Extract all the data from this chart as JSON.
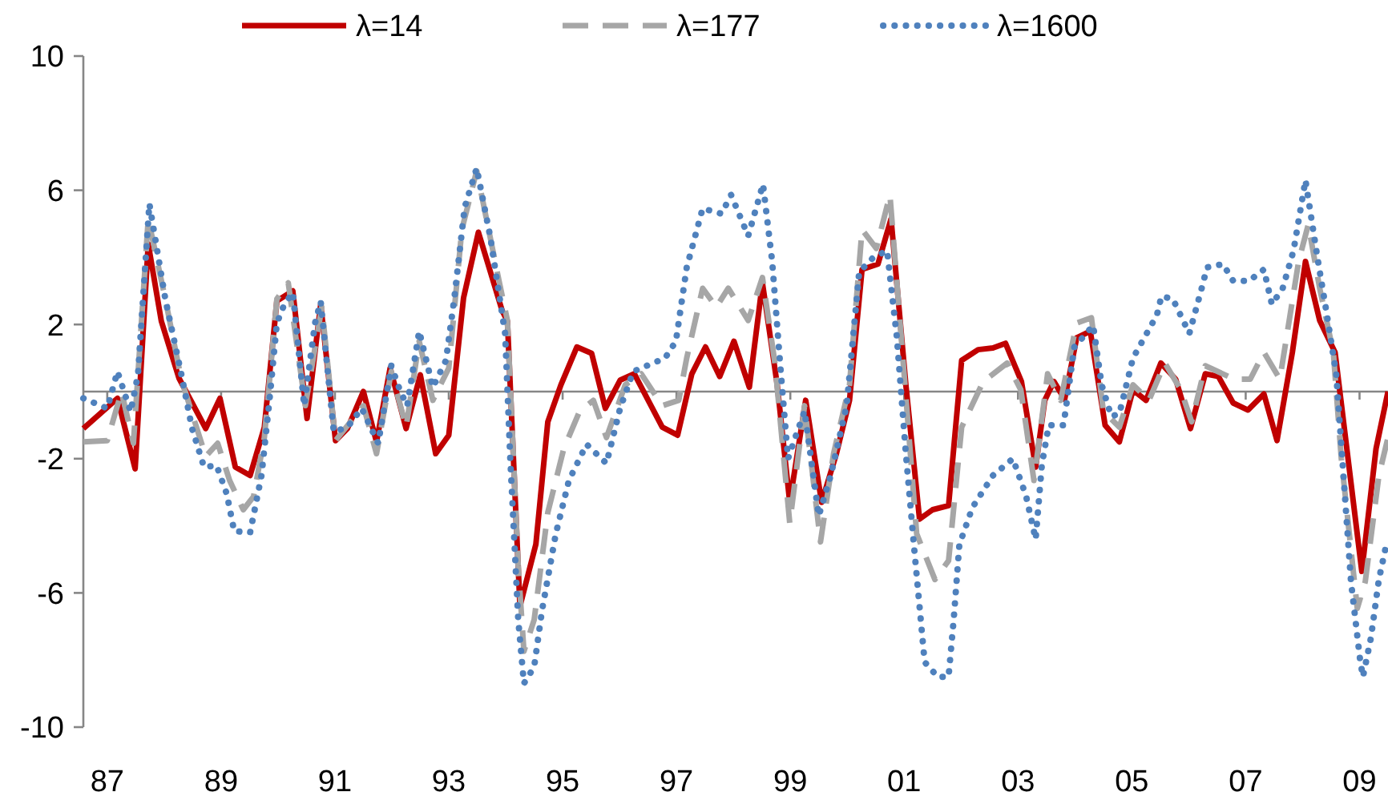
{
  "chart_data": {
    "type": "line",
    "xlim": [
      1986.58,
      2009.5
    ],
    "ylim": [
      -10,
      10
    ],
    "xticks": [
      {
        "value": 1987,
        "label": "87"
      },
      {
        "value": 1989,
        "label": "89"
      },
      {
        "value": 1991,
        "label": "91"
      },
      {
        "value": 1993,
        "label": "93"
      },
      {
        "value": 1995,
        "label": "95"
      },
      {
        "value": 1997,
        "label": "97"
      },
      {
        "value": 1999,
        "label": "99"
      },
      {
        "value": 2001,
        "label": "01"
      },
      {
        "value": 2003,
        "label": "03"
      },
      {
        "value": 2005,
        "label": "05"
      },
      {
        "value": 2007,
        "label": "07"
      },
      {
        "value": 2009,
        "label": "09"
      }
    ],
    "yticks": [
      -10,
      -6,
      -2,
      2,
      6,
      10
    ],
    "grid": false,
    "legend": "top",
    "series": [
      {
        "name": "λ=14",
        "color": "#c00000",
        "line_style": "solid",
        "x": [
          1986.58,
          1987.18,
          1987.49,
          1987.72,
          1987.95,
          1988.26,
          1988.73,
          1988.98,
          1989.25,
          1989.51,
          1989.76,
          1989.98,
          1990.26,
          1990.51,
          1990.75,
          1991.01,
          1991.22,
          1991.5,
          1991.73,
          1991.97,
          1992.25,
          1992.5,
          1992.77,
          1993.0,
          1993.26,
          1993.52,
          1993.94,
          1994.03,
          1994.25,
          1994.53,
          1994.74,
          1994.97,
          1995.25,
          1995.51,
          1995.75,
          1996.01,
          1996.26,
          1996.75,
          1997.02,
          1997.27,
          1997.51,
          1997.76,
          1998.01,
          1998.28,
          1998.51,
          1998.77,
          1998.99,
          1999.27,
          1999.55,
          1999.81,
          2000.04,
          2000.26,
          2000.54,
          2000.77,
          2001.03,
          2001.27,
          2001.5,
          2001.78,
          2002.01,
          2002.3,
          2002.56,
          2002.78,
          2003.06,
          2003.31,
          2003.47,
          2003.63,
          2003.82,
          2004.03,
          2004.27,
          2004.53,
          2004.78,
          2005.02,
          2005.25,
          2005.51,
          2005.77,
          2006.03,
          2006.29,
          2006.52,
          2006.78,
          2007.04,
          2007.32,
          2007.55,
          2007.82,
          2008.05,
          2008.3,
          2008.57,
          2009.04,
          2009.29,
          2009.5
        ],
        "values": [
          -1.1,
          -0.2,
          -2.3,
          4.4,
          2.1,
          0.4,
          -1.1,
          -0.2,
          -2.25,
          -2.5,
          -1.06,
          2.7,
          3.0,
          -0.8,
          2.6,
          -1.46,
          -1.1,
          0,
          -1.5,
          0.7,
          -1.1,
          0.5,
          -1.85,
          -1.3,
          2.8,
          4.75,
          2.4,
          2.1,
          -6.4,
          -4.55,
          -0.9,
          0.2,
          1.33,
          1.14,
          -0.5,
          0.34,
          0.53,
          -1.06,
          -1.3,
          0.53,
          1.33,
          0.45,
          1.5,
          0.13,
          3.24,
          0.2,
          -3.3,
          -0.26,
          -3.3,
          -1.85,
          -0.26,
          3.64,
          3.8,
          5.15,
          0.2,
          -3.8,
          -3.52,
          -3.4,
          0.93,
          1.25,
          1.3,
          1.44,
          0.3,
          -2.25,
          -0.26,
          0.3,
          -0.23,
          1.6,
          1.8,
          -1.0,
          -1.5,
          0.05,
          -0.26,
          0.85,
          0.37,
          -1.1,
          0.53,
          0.45,
          -0.34,
          -0.55,
          -0.07,
          -1.46,
          1.17,
          3.88,
          2.12,
          1.17,
          -5.36,
          -1.7,
          0
        ]
      },
      {
        "name": "λ=177",
        "color": "#a6a6a6",
        "line_style": "dashed",
        "x": [
          1986.58,
          1987.0,
          1987.25,
          1987.46,
          1987.72,
          1988.02,
          1988.3,
          1988.73,
          1988.94,
          1989.15,
          1989.39,
          1989.57,
          1989.76,
          1989.98,
          1990.18,
          1990.48,
          1990.77,
          1991.01,
          1991.5,
          1991.73,
          1991.99,
          1992.25,
          1992.48,
          1992.72,
          1993.0,
          1993.23,
          1993.49,
          1993.89,
          1994.03,
          1994.22,
          1994.32,
          1994.5,
          1994.74,
          1995.02,
          1995.3,
          1995.54,
          1995.77,
          1996.1,
          1996.38,
          1996.75,
          1997.04,
          1997.18,
          1997.46,
          1997.7,
          1997.91,
          1998.26,
          1998.51,
          1998.73,
          1998.99,
          1999.25,
          1999.53,
          1999.76,
          2000.04,
          2000.26,
          2000.51,
          2000.75,
          2000.94,
          2001.22,
          2001.54,
          2001.78,
          2002.01,
          2002.39,
          2002.81,
          2003.05,
          2003.28,
          2003.52,
          2003.75,
          2004.03,
          2004.29,
          2004.5,
          2004.78,
          2005.02,
          2005.3,
          2005.58,
          2005.86,
          2006.05,
          2006.29,
          2006.8,
          2007.08,
          2007.32,
          2007.6,
          2007.93,
          2008.1,
          2008.3,
          2008.54,
          2008.68,
          2008.96,
          2009.1,
          2009.34,
          2009.5
        ],
        "values": [
          -1.5,
          -1.46,
          0,
          -1.54,
          5.15,
          2.76,
          0.37,
          -1.93,
          -1.54,
          -2.65,
          -3.52,
          -3.13,
          -1.37,
          2.76,
          3.24,
          -0.42,
          2.52,
          -1.46,
          -0.42,
          -1.85,
          0.6,
          -1.06,
          1.5,
          -0.26,
          0.7,
          4.83,
          6.58,
          3.24,
          2.12,
          -5.2,
          -7.74,
          -6.8,
          -3.6,
          -1.7,
          -0.58,
          -0.26,
          -1.37,
          0.2,
          0.53,
          -0.42,
          -0.26,
          1.0,
          3.08,
          2.52,
          3.08,
          2.12,
          3.4,
          0.85,
          -3.92,
          -0.42,
          -4.48,
          -1.85,
          0.2,
          4.83,
          4.27,
          5.86,
          1.8,
          -4.24,
          -5.6,
          -5.04,
          -1.06,
          0.3,
          0.85,
          0.05,
          -2.65,
          0.53,
          -0.26,
          2.04,
          2.2,
          -0.58,
          -1.06,
          0.2,
          -0.26,
          0.85,
          0.05,
          -0.9,
          0.77,
          0.37,
          0.37,
          1.17,
          0.37,
          3.88,
          4.98,
          3.08,
          1.17,
          -2.0,
          -6.46,
          -5.67,
          -2.5,
          -1.37
        ]
      },
      {
        "name": "λ=1600",
        "color": "#4f81bd",
        "line_style": "dotted",
        "x": [
          1986.58,
          1987.0,
          1987.18,
          1987.41,
          1987.54,
          1987.74,
          1988.02,
          1988.3,
          1988.49,
          1988.7,
          1988.92,
          1989.1,
          1989.23,
          1989.51,
          1989.71,
          1989.85,
          1989.98,
          1990.11,
          1990.26,
          1990.46,
          1990.65,
          1990.75,
          1990.98,
          1991.22,
          1991.47,
          1991.76,
          1991.99,
          1992.15,
          1992.27,
          1992.48,
          1992.72,
          1992.95,
          1993.09,
          1993.28,
          1993.49,
          1993.73,
          1993.99,
          1994.08,
          1994.22,
          1994.32,
          1994.5,
          1994.64,
          1994.88,
          1995.11,
          1995.42,
          1995.77,
          1996.01,
          1996.24,
          1996.8,
          1996.99,
          1997.18,
          1997.46,
          1997.79,
          1997.96,
          1998.26,
          1998.52,
          1998.68,
          1998.82,
          1998.96,
          1999.1,
          1999.25,
          1999.5,
          1999.71,
          1999.99,
          2000.21,
          2000.46,
          2000.7,
          2000.87,
          2001.03,
          2001.17,
          2001.36,
          2001.59,
          2001.78,
          2001.87,
          2001.97,
          2002.2,
          2002.56,
          2002.91,
          2003.14,
          2003.31,
          2003.42,
          2003.54,
          2003.8,
          2003.99,
          2004.32,
          2004.47,
          2004.64,
          2004.78,
          2005.02,
          2005.44,
          2005.52,
          2005.72,
          2006.01,
          2006.24,
          2006.32,
          2006.6,
          2006.78,
          2007.06,
          2007.32,
          2007.46,
          2007.65,
          2007.84,
          2008.05,
          2008.26,
          2008.42,
          2008.59,
          2008.73,
          2008.85,
          2009.01,
          2009.06,
          2009.2,
          2009.34,
          2009.48
        ],
        "values": [
          -0.2,
          -0.5,
          0.6,
          -0.6,
          0.5,
          5.6,
          2.76,
          0.53,
          -1.1,
          -2.25,
          -2.2,
          -3.05,
          -4.16,
          -4.2,
          -2.5,
          -0.26,
          2.04,
          2.6,
          2.95,
          -0.42,
          2.04,
          2.68,
          -1.2,
          -1.06,
          -0.5,
          -1.54,
          0.77,
          0,
          -0.42,
          1.8,
          0.13,
          0.93,
          2.68,
          5.5,
          6.66,
          4.6,
          1.73,
          -2.0,
          -6.8,
          -8.7,
          -8.2,
          -6.5,
          -4.24,
          -2.65,
          -1.57,
          -2.14,
          -0.5,
          0.6,
          1.0,
          1.5,
          3.7,
          5.46,
          5.3,
          5.86,
          4.64,
          6.18,
          3.9,
          0.85,
          -2.0,
          -1.3,
          -0.58,
          -3.7,
          -2.5,
          -0.42,
          3.56,
          4.0,
          4.2,
          1.65,
          -1.85,
          -4.56,
          -8.06,
          -8.5,
          -8.5,
          -6.8,
          -4.56,
          -3.45,
          -2.5,
          -2.0,
          -3.1,
          -4.4,
          -2.17,
          -1.0,
          -1.0,
          1.33,
          1.97,
          0.2,
          -0.74,
          -0.66,
          1.0,
          2.28,
          2.84,
          2.76,
          1.73,
          3.16,
          3.7,
          3.8,
          3.3,
          3.3,
          3.64,
          2.6,
          3.08,
          4.2,
          6.3,
          4.0,
          2.36,
          0.53,
          -2.8,
          -5.67,
          -8.0,
          -8.5,
          -7.34,
          -5.6,
          -4.48
        ]
      }
    ]
  }
}
